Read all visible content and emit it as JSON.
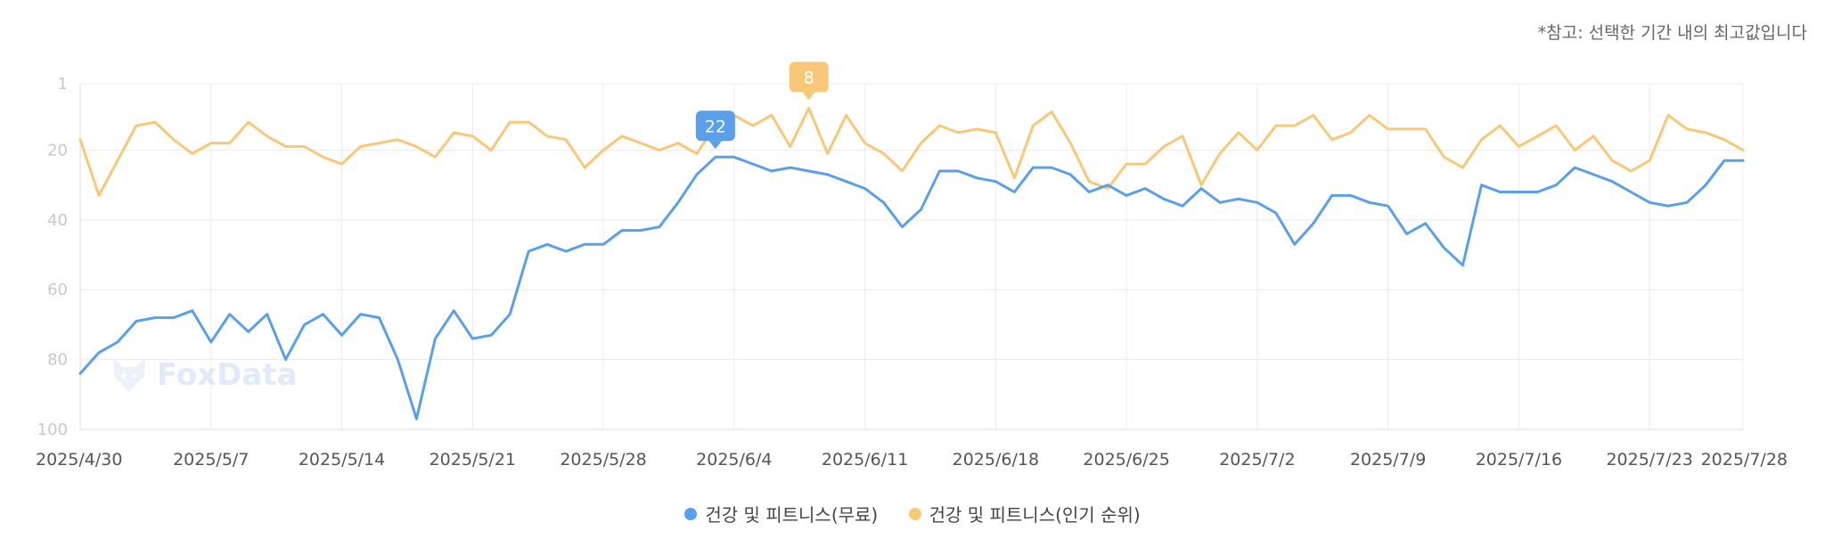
{
  "note": "*참고: 선택한 기간 내의 최고값입니다",
  "watermark": "FoxData",
  "colors": {
    "free": "#5b9ee9",
    "popular": "#f8c878",
    "grid": "#ececec"
  },
  "chart_data": {
    "type": "line",
    "title": "",
    "xlabel": "",
    "ylabel": "",
    "y_inverted": true,
    "ylim": [
      1,
      100
    ],
    "y_ticks": [
      1,
      20,
      40,
      60,
      80,
      100
    ],
    "x_range": [
      "2025-04-30",
      "2025-07-28"
    ],
    "x_ticks": [
      {
        "date": "2025-04-30",
        "label": "2025/4/30"
      },
      {
        "date": "2025-05-07",
        "label": "2025/5/7"
      },
      {
        "date": "2025-05-14",
        "label": "2025/5/14"
      },
      {
        "date": "2025-05-21",
        "label": "2025/5/21"
      },
      {
        "date": "2025-05-28",
        "label": "2025/5/28"
      },
      {
        "date": "2025-06-04",
        "label": "2025/6/4"
      },
      {
        "date": "2025-06-11",
        "label": "2025/6/11"
      },
      {
        "date": "2025-06-18",
        "label": "2025/6/18"
      },
      {
        "date": "2025-06-25",
        "label": "2025/6/25"
      },
      {
        "date": "2025-07-02",
        "label": "2025/7/2"
      },
      {
        "date": "2025-07-09",
        "label": "2025/7/9"
      },
      {
        "date": "2025-07-16",
        "label": "2025/7/16"
      },
      {
        "date": "2025-07-23",
        "label": "2025/7/23"
      },
      {
        "date": "2025-07-28",
        "label": "2025/7/28"
      }
    ],
    "grid": true,
    "legend_position": "bottom-center",
    "series": [
      {
        "name": "건강 및 피트니스(무료)",
        "color": "#5b9ee9",
        "peak": {
          "date": "2025-06-03",
          "value": 22,
          "label": "22"
        },
        "points": [
          [
            "2025-04-30",
            84
          ],
          [
            "2025-05-01",
            78
          ],
          [
            "2025-05-02",
            75
          ],
          [
            "2025-05-03",
            69
          ],
          [
            "2025-05-04",
            68
          ],
          [
            "2025-05-05",
            68
          ],
          [
            "2025-05-06",
            66
          ],
          [
            "2025-05-07",
            75
          ],
          [
            "2025-05-08",
            67
          ],
          [
            "2025-05-09",
            72
          ],
          [
            "2025-05-10",
            67
          ],
          [
            "2025-05-11",
            80
          ],
          [
            "2025-05-12",
            70
          ],
          [
            "2025-05-13",
            67
          ],
          [
            "2025-05-14",
            73
          ],
          [
            "2025-05-15",
            67
          ],
          [
            "2025-05-16",
            68
          ],
          [
            "2025-05-17",
            80
          ],
          [
            "2025-05-18",
            97
          ],
          [
            "2025-05-19",
            74
          ],
          [
            "2025-05-20",
            66
          ],
          [
            "2025-05-21",
            74
          ],
          [
            "2025-05-22",
            73
          ],
          [
            "2025-05-23",
            67
          ],
          [
            "2025-05-24",
            49
          ],
          [
            "2025-05-25",
            47
          ],
          [
            "2025-05-26",
            49
          ],
          [
            "2025-05-27",
            47
          ],
          [
            "2025-05-28",
            47
          ],
          [
            "2025-05-29",
            43
          ],
          [
            "2025-05-30",
            43
          ],
          [
            "2025-05-31",
            42
          ],
          [
            "2025-06-01",
            35
          ],
          [
            "2025-06-02",
            27
          ],
          [
            "2025-06-03",
            22
          ],
          [
            "2025-06-04",
            22
          ],
          [
            "2025-06-05",
            24
          ],
          [
            "2025-06-06",
            26
          ],
          [
            "2025-06-07",
            25
          ],
          [
            "2025-06-08",
            26
          ],
          [
            "2025-06-09",
            27
          ],
          [
            "2025-06-10",
            29
          ],
          [
            "2025-06-11",
            31
          ],
          [
            "2025-06-12",
            35
          ],
          [
            "2025-06-13",
            42
          ],
          [
            "2025-06-14",
            37
          ],
          [
            "2025-06-15",
            26
          ],
          [
            "2025-06-16",
            26
          ],
          [
            "2025-06-17",
            28
          ],
          [
            "2025-06-18",
            29
          ],
          [
            "2025-06-19",
            32
          ],
          [
            "2025-06-20",
            25
          ],
          [
            "2025-06-21",
            25
          ],
          [
            "2025-06-22",
            27
          ],
          [
            "2025-06-23",
            32
          ],
          [
            "2025-06-24",
            30
          ],
          [
            "2025-06-25",
            33
          ],
          [
            "2025-06-26",
            31
          ],
          [
            "2025-06-27",
            34
          ],
          [
            "2025-06-28",
            36
          ],
          [
            "2025-06-29",
            31
          ],
          [
            "2025-06-30",
            35
          ],
          [
            "2025-07-01",
            34
          ],
          [
            "2025-07-02",
            35
          ],
          [
            "2025-07-03",
            38
          ],
          [
            "2025-07-04",
            47
          ],
          [
            "2025-07-05",
            41
          ],
          [
            "2025-07-06",
            33
          ],
          [
            "2025-07-07",
            33
          ],
          [
            "2025-07-08",
            35
          ],
          [
            "2025-07-09",
            36
          ],
          [
            "2025-07-10",
            44
          ],
          [
            "2025-07-11",
            41
          ],
          [
            "2025-07-12",
            48
          ],
          [
            "2025-07-13",
            53
          ],
          [
            "2025-07-14",
            30
          ],
          [
            "2025-07-15",
            32
          ],
          [
            "2025-07-16",
            32
          ],
          [
            "2025-07-17",
            32
          ],
          [
            "2025-07-18",
            30
          ],
          [
            "2025-07-19",
            25
          ],
          [
            "2025-07-20",
            27
          ],
          [
            "2025-07-21",
            29
          ],
          [
            "2025-07-22",
            32
          ],
          [
            "2025-07-23",
            35
          ],
          [
            "2025-07-24",
            36
          ],
          [
            "2025-07-25",
            35
          ],
          [
            "2025-07-26",
            30
          ],
          [
            "2025-07-27",
            23
          ],
          [
            "2025-07-28",
            23
          ]
        ]
      },
      {
        "name": "건강 및 피트니스(인기 순위)",
        "color": "#f8c878",
        "peak": {
          "date": "2025-06-08",
          "value": 8,
          "label": "8"
        },
        "points": [
          [
            "2025-04-30",
            17
          ],
          [
            "2025-05-01",
            33
          ],
          [
            "2025-05-02",
            23
          ],
          [
            "2025-05-03",
            13
          ],
          [
            "2025-05-04",
            12
          ],
          [
            "2025-05-05",
            17
          ],
          [
            "2025-05-06",
            21
          ],
          [
            "2025-05-07",
            18
          ],
          [
            "2025-05-08",
            18
          ],
          [
            "2025-05-09",
            12
          ],
          [
            "2025-05-10",
            16
          ],
          [
            "2025-05-11",
            19
          ],
          [
            "2025-05-12",
            19
          ],
          [
            "2025-05-13",
            22
          ],
          [
            "2025-05-14",
            24
          ],
          [
            "2025-05-15",
            19
          ],
          [
            "2025-05-16",
            18
          ],
          [
            "2025-05-17",
            17
          ],
          [
            "2025-05-18",
            19
          ],
          [
            "2025-05-19",
            22
          ],
          [
            "2025-05-20",
            15
          ],
          [
            "2025-05-21",
            16
          ],
          [
            "2025-05-22",
            20
          ],
          [
            "2025-05-23",
            12
          ],
          [
            "2025-05-24",
            12
          ],
          [
            "2025-05-25",
            16
          ],
          [
            "2025-05-26",
            17
          ],
          [
            "2025-05-27",
            25
          ],
          [
            "2025-05-28",
            20
          ],
          [
            "2025-05-29",
            16
          ],
          [
            "2025-05-30",
            18
          ],
          [
            "2025-05-31",
            20
          ],
          [
            "2025-06-01",
            18
          ],
          [
            "2025-06-02",
            21
          ],
          [
            "2025-06-03",
            13
          ],
          [
            "2025-06-04",
            10
          ],
          [
            "2025-06-05",
            13
          ],
          [
            "2025-06-06",
            10
          ],
          [
            "2025-06-07",
            19
          ],
          [
            "2025-06-08",
            8
          ],
          [
            "2025-06-09",
            21
          ],
          [
            "2025-06-10",
            10
          ],
          [
            "2025-06-11",
            18
          ],
          [
            "2025-06-12",
            21
          ],
          [
            "2025-06-13",
            26
          ],
          [
            "2025-06-14",
            18
          ],
          [
            "2025-06-15",
            13
          ],
          [
            "2025-06-16",
            15
          ],
          [
            "2025-06-17",
            14
          ],
          [
            "2025-06-18",
            15
          ],
          [
            "2025-06-19",
            28
          ],
          [
            "2025-06-20",
            13
          ],
          [
            "2025-06-21",
            9
          ],
          [
            "2025-06-22",
            18
          ],
          [
            "2025-06-23",
            29
          ],
          [
            "2025-06-24",
            31
          ],
          [
            "2025-06-25",
            24
          ],
          [
            "2025-06-26",
            24
          ],
          [
            "2025-06-27",
            19
          ],
          [
            "2025-06-28",
            16
          ],
          [
            "2025-06-29",
            30
          ],
          [
            "2025-06-30",
            21
          ],
          [
            "2025-07-01",
            15
          ],
          [
            "2025-07-02",
            20
          ],
          [
            "2025-07-03",
            13
          ],
          [
            "2025-07-04",
            13
          ],
          [
            "2025-07-05",
            10
          ],
          [
            "2025-07-06",
            17
          ],
          [
            "2025-07-07",
            15
          ],
          [
            "2025-07-08",
            10
          ],
          [
            "2025-07-09",
            14
          ],
          [
            "2025-07-10",
            14
          ],
          [
            "2025-07-11",
            14
          ],
          [
            "2025-07-12",
            22
          ],
          [
            "2025-07-13",
            25
          ],
          [
            "2025-07-14",
            17
          ],
          [
            "2025-07-15",
            13
          ],
          [
            "2025-07-16",
            19
          ],
          [
            "2025-07-17",
            16
          ],
          [
            "2025-07-18",
            13
          ],
          [
            "2025-07-19",
            20
          ],
          [
            "2025-07-20",
            16
          ],
          [
            "2025-07-21",
            23
          ],
          [
            "2025-07-22",
            26
          ],
          [
            "2025-07-23",
            23
          ],
          [
            "2025-07-24",
            10
          ],
          [
            "2025-07-25",
            14
          ],
          [
            "2025-07-26",
            15
          ],
          [
            "2025-07-27",
            17
          ],
          [
            "2025-07-28",
            20
          ]
        ]
      }
    ]
  }
}
